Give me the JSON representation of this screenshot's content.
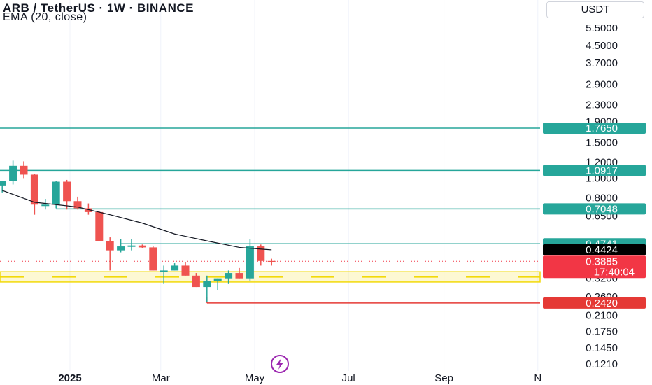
{
  "header": {
    "title": "ARB / TetherUS · 1W · BINANCE",
    "indicator": "EMA (20, close)",
    "currency": "USDT"
  },
  "colors": {
    "up": "#26a69a",
    "down": "#ef5350",
    "level": "#26a69a",
    "support": "#f2d90a",
    "support_line": "#e53935",
    "ema": "#131722",
    "last_price": "#f23645",
    "ema_tag": "#000000"
  },
  "chart_data": {
    "type": "candlestick",
    "title": "ARB / TetherUS · 1W · BINANCE",
    "y_scale": "log",
    "ylim": [
      0.115,
      6.0
    ],
    "y_ticks": [
      "5.5000",
      "4.5000",
      "3.7000",
      "2.9000",
      "2.3000",
      "1.9000",
      "1.5000",
      "1.2000",
      "1.0000",
      "0.8000",
      "0.6500",
      "0.3200",
      "0.2600",
      "0.2100",
      "0.1750",
      "0.1450",
      "0.1210"
    ],
    "x_ticks": [
      {
        "label": "2025",
        "date": "2025-01-01",
        "bold": true
      },
      {
        "label": "Mar",
        "date": "2025-03-01",
        "bold": false
      },
      {
        "label": "May",
        "date": "2025-05-01",
        "bold": false
      },
      {
        "label": "Jul",
        "date": "2025-07-01",
        "bold": false
      },
      {
        "label": "Sep",
        "date": "2025-09-01",
        "bold": false
      },
      {
        "label": "N",
        "date": "2025-11-01",
        "bold": false
      }
    ],
    "candles": [
      {
        "date": "2024-11-18",
        "open": 0.92,
        "high": 0.97,
        "low": 0.85,
        "close": 0.97
      },
      {
        "date": "2024-11-25",
        "open": 0.97,
        "high": 1.22,
        "low": 0.93,
        "close": 1.15
      },
      {
        "date": "2024-12-02",
        "open": 1.15,
        "high": 1.21,
        "low": 1.0,
        "close": 1.04
      },
      {
        "date": "2024-12-09",
        "open": 1.04,
        "high": 1.05,
        "low": 0.66,
        "close": 0.74
      },
      {
        "date": "2024-12-16",
        "open": 0.74,
        "high": 0.79,
        "low": 0.7,
        "close": 0.74
      },
      {
        "date": "2024-12-23",
        "open": 0.74,
        "high": 0.97,
        "low": 0.71,
        "close": 0.96
      },
      {
        "date": "2024-12-30",
        "open": 0.96,
        "high": 0.98,
        "low": 0.7,
        "close": 0.77
      },
      {
        "date": "2025-01-06",
        "open": 0.77,
        "high": 0.81,
        "low": 0.7,
        "close": 0.71
      },
      {
        "date": "2025-01-13",
        "open": 0.71,
        "high": 0.75,
        "low": 0.66,
        "close": 0.68
      },
      {
        "date": "2025-01-20",
        "open": 0.68,
        "high": 0.69,
        "low": 0.49,
        "close": 0.49
      },
      {
        "date": "2025-01-27",
        "open": 0.49,
        "high": 0.51,
        "low": 0.35,
        "close": 0.44
      },
      {
        "date": "2025-02-03",
        "open": 0.44,
        "high": 0.5,
        "low": 0.43,
        "close": 0.46
      },
      {
        "date": "2025-02-10",
        "open": 0.46,
        "high": 0.5,
        "low": 0.44,
        "close": 0.465
      },
      {
        "date": "2025-02-17",
        "open": 0.465,
        "high": 0.47,
        "low": 0.45,
        "close": 0.455
      },
      {
        "date": "2025-02-24",
        "open": 0.455,
        "high": 0.46,
        "low": 0.35,
        "close": 0.35
      },
      {
        "date": "2025-03-03",
        "open": 0.35,
        "high": 0.37,
        "low": 0.3,
        "close": 0.35
      },
      {
        "date": "2025-03-10",
        "open": 0.35,
        "high": 0.38,
        "low": 0.35,
        "close": 0.37
      },
      {
        "date": "2025-03-17",
        "open": 0.37,
        "high": 0.385,
        "low": 0.33,
        "close": 0.33
      },
      {
        "date": "2025-03-24",
        "open": 0.33,
        "high": 0.34,
        "low": 0.29,
        "close": 0.29
      },
      {
        "date": "2025-03-31",
        "open": 0.29,
        "high": 0.33,
        "low": 0.245,
        "close": 0.31
      },
      {
        "date": "2025-04-07",
        "open": 0.31,
        "high": 0.32,
        "low": 0.28,
        "close": 0.32
      },
      {
        "date": "2025-04-14",
        "open": 0.32,
        "high": 0.35,
        "low": 0.3,
        "close": 0.34
      },
      {
        "date": "2025-04-21",
        "open": 0.34,
        "high": 0.36,
        "low": 0.32,
        "close": 0.32
      },
      {
        "date": "2025-04-28",
        "open": 0.32,
        "high": 0.5,
        "low": 0.31,
        "close": 0.46
      },
      {
        "date": "2025-05-05",
        "open": 0.46,
        "high": 0.47,
        "low": 0.37,
        "close": 0.39
      },
      {
        "date": "2025-05-12",
        "open": 0.39,
        "high": 0.4,
        "low": 0.37,
        "close": 0.3885
      }
    ],
    "ema_20": [
      {
        "date": "2024-11-18",
        "value": 0.87
      },
      {
        "date": "2024-12-09",
        "value": 0.76
      },
      {
        "date": "2024-12-23",
        "value": 0.74
      },
      {
        "date": "2025-01-06",
        "value": 0.72
      },
      {
        "date": "2025-01-27",
        "value": 0.66
      },
      {
        "date": "2025-02-17",
        "value": 0.6
      },
      {
        "date": "2025-03-10",
        "value": 0.53
      },
      {
        "date": "2025-03-31",
        "value": 0.49
      },
      {
        "date": "2025-04-21",
        "value": 0.455
      },
      {
        "date": "2025-05-12",
        "value": 0.4424
      }
    ],
    "levels": [
      {
        "value": 1.765,
        "label": "1.7650",
        "start": "2024-11-01",
        "kind": "resistance"
      },
      {
        "value": 1.0917,
        "label": "1.0917",
        "start": "2024-11-01",
        "kind": "resistance"
      },
      {
        "value": 0.7048,
        "label": "0.7048",
        "start": "2024-12-23",
        "kind": "resistance"
      },
      {
        "value": 0.4741,
        "label": "0.4741",
        "start": "2025-02-03",
        "kind": "resistance"
      },
      {
        "value": 0.242,
        "label": "0.2420",
        "start": "2025-03-31",
        "kind": "support-low"
      }
    ],
    "support_zone": {
      "low": 0.307,
      "high": 0.345
    },
    "ema_last": {
      "value": 0.4424,
      "label": "0.4424"
    },
    "last_price": {
      "value": 0.3885,
      "label": "0.3885",
      "countdown": "17:40:04"
    }
  }
}
